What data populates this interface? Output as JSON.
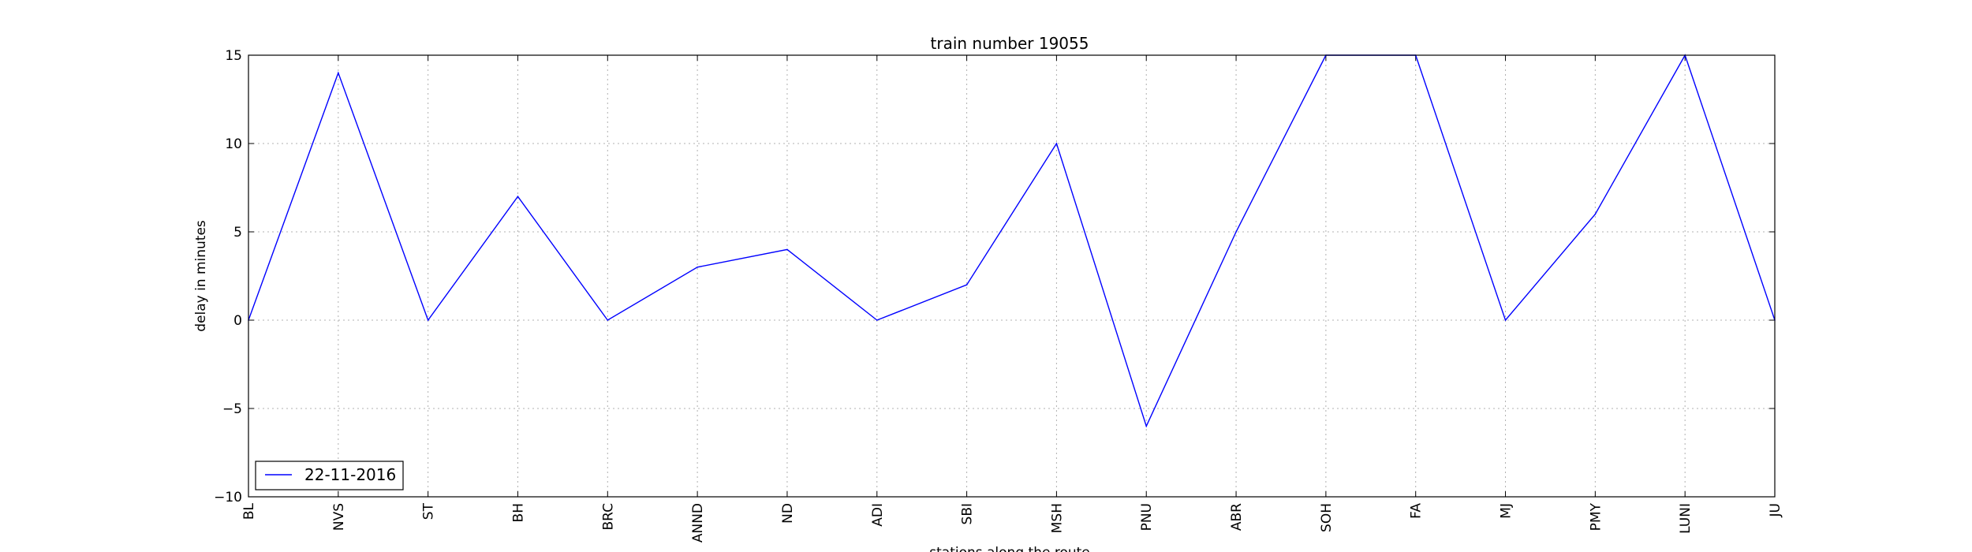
{
  "chart_data": {
    "type": "line",
    "title": "train number 19055",
    "xlabel": "stations along the route",
    "ylabel": "delay in minutes",
    "categories": [
      "BL",
      "NVS",
      "ST",
      "BH",
      "BRC",
      "ANND",
      "ND",
      "ADI",
      "SBI",
      "MSH",
      "PNU",
      "ABR",
      "SOH",
      "FA",
      "MJ",
      "PMY",
      "LUNI",
      "JU"
    ],
    "series": [
      {
        "name": "22-11-2016",
        "values": [
          0,
          14,
          0,
          7,
          0,
          3,
          4,
          0,
          2,
          10,
          -6,
          5,
          15,
          15,
          0,
          6,
          15,
          0
        ],
        "color": "#0000ff"
      }
    ],
    "ylim": [
      -10,
      15
    ],
    "yticks": [
      -10,
      -5,
      0,
      5,
      10,
      15
    ],
    "ytick_labels": [
      "−10",
      "−5",
      "0",
      "5",
      "10",
      "15"
    ],
    "grid": true,
    "legend_position": "lower-left"
  }
}
